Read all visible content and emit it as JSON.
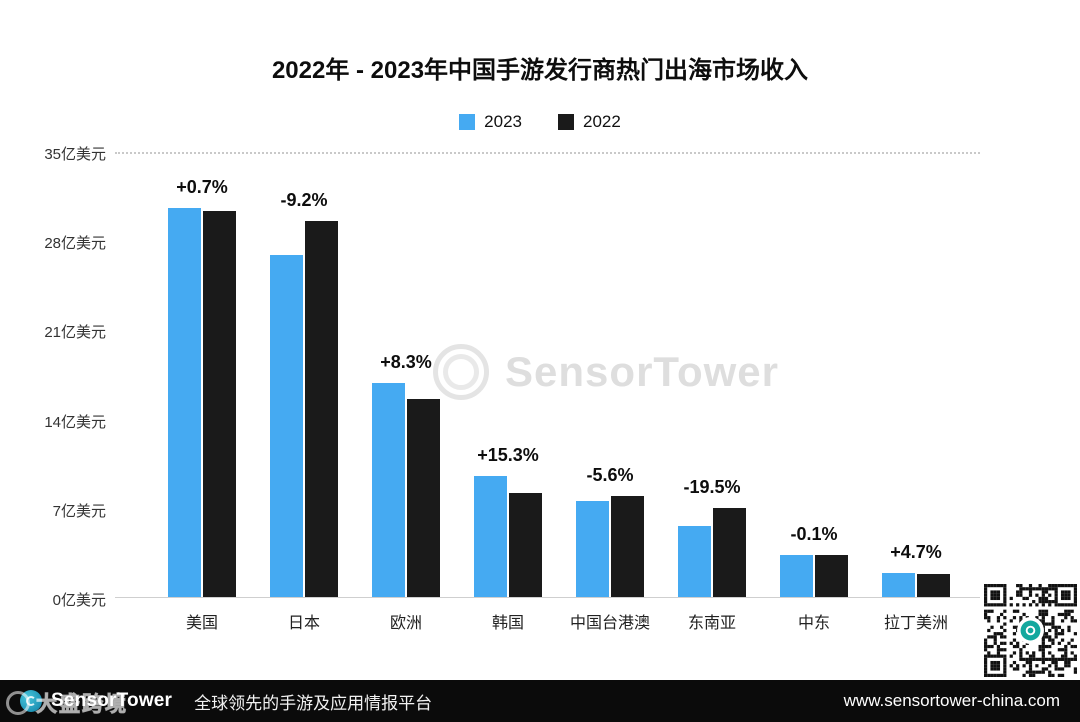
{
  "chart_data": {
    "type": "bar",
    "title": "2022年 - 2023年中国手游发行商热门出海市场收入",
    "categories": [
      "美国",
      "日本",
      "欧洲",
      "韩国",
      "中国台港澳",
      "东南亚",
      "中东",
      "拉丁美洲"
    ],
    "series": [
      {
        "name": "2023",
        "color": "#45AAF2",
        "values": [
          30.5,
          26.8,
          16.8,
          9.5,
          7.5,
          5.6,
          3.3,
          1.9
        ]
      },
      {
        "name": "2022",
        "color": "#1A1A1A",
        "values": [
          30.3,
          29.5,
          15.5,
          8.2,
          7.95,
          7.0,
          3.3,
          1.8
        ]
      }
    ],
    "change_labels": [
      "+0.7%",
      "-9.2%",
      "+8.3%",
      "+15.3%",
      "-5.6%",
      "-19.5%",
      "-0.1%",
      "+4.7%"
    ],
    "y_ticks": [
      "35亿美元",
      "28亿美元",
      "21亿美元",
      "14亿美元",
      "7亿美元",
      "0亿美元"
    ],
    "ylabel_unit": "亿美元",
    "ylim": [
      0,
      35
    ],
    "grid": "dotted-line-at-top-only",
    "legend_position": "top-center"
  },
  "watermark": {
    "text": "SensorTower"
  },
  "corner_watermark": {
    "text": "大盛跨境"
  },
  "footer": {
    "brand": "SensorTower",
    "tagline": "全球领先的手游及应用情报平台",
    "url": "www.sensortower-china.com"
  },
  "colors": {
    "bar_2023": "#45AAF2",
    "bar_2022": "#1A1A1A",
    "footer_bg": "#0B0B0B",
    "qr_center": "#13A89E"
  }
}
